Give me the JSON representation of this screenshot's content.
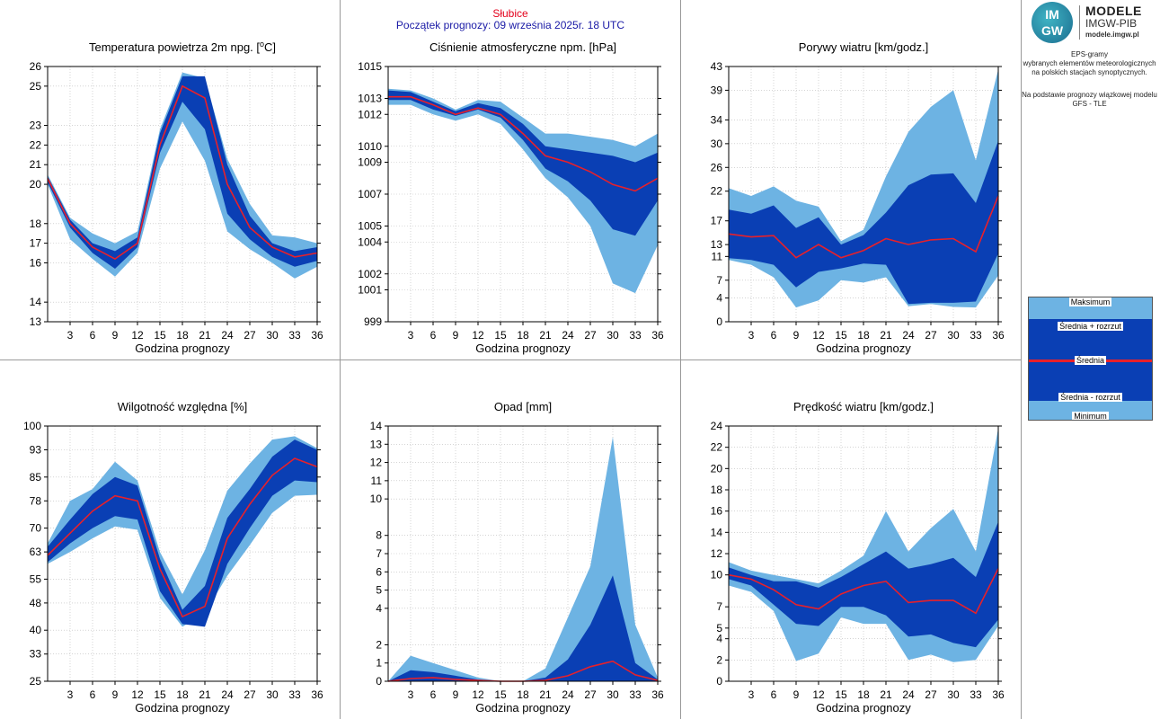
{
  "header": {
    "station": "Słubice",
    "forecast_start": "Początek prognozy: 09 września 2025r. 18 UTC"
  },
  "logo": {
    "title": "MODELE",
    "org": "IMGW-PIB",
    "url": "modele.imgw.pl",
    "mark_top": "IM",
    "mark_bottom": "GW"
  },
  "info": {
    "line1": "EPS-gramy",
    "line2": "wybranych elementów meteorologicznych",
    "line3": "na polskich stacjach  synoptycznych.",
    "line4": "Na podstawie prognozy wiązkowej modelu",
    "line5": "GFS - TLE"
  },
  "legend": {
    "max": "Maksimum",
    "mean_plus": "Średnia + rozrzut",
    "mean": "Średnia",
    "mean_minus": "Średnia - rozrzut",
    "min": "Minimum"
  },
  "colors": {
    "outer": "#6db3e3",
    "inner": "#0a3fb4",
    "mean": "#e8202a",
    "frame": "#000000",
    "grid": "#bbbbbb"
  },
  "chart_data": [
    {
      "type": "area",
      "title": "Temperatura powietrza 2m npg. [°C]",
      "title_main": "Temperatura powietrza 2m npg. [",
      "title_sup": "o",
      "title_end": "C]",
      "xlabel": "Godzina prognozy",
      "x": [
        0,
        3,
        6,
        9,
        12,
        15,
        18,
        21,
        24,
        27,
        30,
        33,
        36
      ],
      "xticks": [
        3,
        6,
        9,
        12,
        15,
        18,
        21,
        24,
        27,
        30,
        33,
        36
      ],
      "ylim": [
        13,
        26
      ],
      "yticks": [
        13,
        14,
        16,
        17,
        18,
        20,
        21,
        22,
        23,
        25,
        26
      ],
      "min": [
        20.0,
        17.2,
        16.2,
        15.3,
        16.5,
        20.8,
        23.2,
        21.2,
        17.6,
        16.7,
        16.0,
        15.2,
        15.8
      ],
      "lower": [
        20.1,
        17.8,
        16.5,
        15.7,
        16.8,
        21.6,
        24.2,
        22.8,
        18.5,
        17.2,
        16.3,
        15.8,
        16.1
      ],
      "mean": [
        20.3,
        18.0,
        16.8,
        16.2,
        17.0,
        22.0,
        25.0,
        24.4,
        20.0,
        17.8,
        16.8,
        16.3,
        16.5
      ],
      "upper": [
        20.4,
        18.2,
        17.0,
        16.6,
        17.3,
        22.6,
        25.5,
        25.5,
        21.0,
        18.4,
        17.0,
        16.6,
        16.8
      ],
      "max": [
        20.5,
        18.3,
        17.5,
        17.0,
        17.6,
        22.8,
        25.7,
        25.4,
        21.3,
        19.0,
        17.4,
        17.3,
        17.0
      ]
    },
    {
      "type": "area",
      "title": "Ciśnienie atmosferyczne npm. [hPa]",
      "xlabel": "Godzina prognozy",
      "x": [
        0,
        3,
        6,
        9,
        12,
        15,
        18,
        21,
        24,
        27,
        30,
        33,
        36
      ],
      "xticks": [
        3,
        6,
        9,
        12,
        15,
        18,
        21,
        24,
        27,
        30,
        33,
        36
      ],
      "ylim": [
        999,
        1015
      ],
      "yticks": [
        999,
        1001,
        1002,
        1004,
        1005,
        1007,
        1009,
        1010,
        1012,
        1013,
        1015
      ],
      "min": [
        1012.6,
        1012.6,
        1012.0,
        1011.6,
        1012.0,
        1011.4,
        1009.8,
        1008.0,
        1006.8,
        1005.0,
        1001.4,
        1000.8,
        1003.8
      ],
      "lower": [
        1012.9,
        1012.9,
        1012.3,
        1011.9,
        1012.3,
        1011.8,
        1010.4,
        1008.6,
        1007.8,
        1006.6,
        1004.8,
        1004.4,
        1006.6
      ],
      "mean": [
        1013.1,
        1013.1,
        1012.6,
        1012.0,
        1012.4,
        1012.0,
        1010.8,
        1009.4,
        1009.0,
        1008.4,
        1007.6,
        1007.2,
        1008.0
      ],
      "upper": [
        1013.5,
        1013.4,
        1012.8,
        1012.2,
        1012.7,
        1012.4,
        1011.4,
        1010.0,
        1009.8,
        1009.6,
        1009.4,
        1009.0,
        1009.6
      ],
      "max": [
        1013.6,
        1013.5,
        1013.0,
        1012.3,
        1012.9,
        1012.8,
        1011.8,
        1010.8,
        1010.8,
        1010.6,
        1010.4,
        1010.0,
        1010.8
      ]
    },
    {
      "type": "area",
      "title": "Porywy wiatru [km/godz.]",
      "xlabel": "Godzina prognozy",
      "x": [
        0,
        3,
        6,
        9,
        12,
        15,
        18,
        21,
        24,
        27,
        30,
        33,
        36
      ],
      "xticks": [
        3,
        6,
        9,
        12,
        15,
        18,
        21,
        24,
        27,
        30,
        33,
        36
      ],
      "ylim": [
        0,
        43
      ],
      "yticks": [
        0,
        4,
        7,
        11,
        13,
        17,
        22,
        26,
        30,
        34,
        39,
        43
      ],
      "min": [
        10.4,
        9.6,
        7.5,
        2.4,
        3.6,
        7.0,
        6.6,
        7.5,
        2.6,
        3.0,
        2.5,
        2.4,
        7.8
      ],
      "lower": [
        10.7,
        10.4,
        9.6,
        5.8,
        8.4,
        9.0,
        9.8,
        9.6,
        3.0,
        3.2,
        3.2,
        3.4,
        11.5
      ],
      "mean": [
        14.8,
        14.3,
        14.5,
        10.8,
        13.0,
        10.8,
        12.0,
        14.0,
        13.0,
        13.8,
        14.0,
        11.8,
        21.2
      ],
      "upper": [
        18.9,
        18.2,
        19.6,
        15.8,
        17.6,
        13.0,
        14.6,
        18.4,
        23.0,
        24.8,
        25.0,
        20.0,
        30.5
      ],
      "max": [
        22.5,
        21.2,
        22.8,
        20.4,
        19.4,
        13.6,
        15.5,
        24.5,
        32.0,
        36.2,
        39.0,
        27.2,
        42.5
      ]
    },
    {
      "type": "area",
      "title": "Wilgotność względna [%]",
      "xlabel": "Godzina prognozy",
      "x": [
        0,
        3,
        6,
        9,
        12,
        15,
        18,
        21,
        24,
        27,
        30,
        33,
        36
      ],
      "xticks": [
        3,
        6,
        9,
        12,
        15,
        18,
        21,
        24,
        27,
        30,
        33,
        36
      ],
      "ylim": [
        25,
        100
      ],
      "yticks": [
        25,
        33,
        40,
        48,
        55,
        63,
        70,
        78,
        85,
        93,
        100
      ],
      "min": [
        59.5,
        63.0,
        67.0,
        70.5,
        69.5,
        49.5,
        41.0,
        45.0,
        56.0,
        65.0,
        74.5,
        79.5,
        79.8
      ],
      "lower": [
        60.0,
        65.5,
        70.0,
        73.5,
        72.5,
        51.5,
        41.8,
        41.0,
        59.5,
        70.0,
        79.5,
        84.0,
        83.5
      ],
      "mean": [
        62.0,
        68.5,
        75.0,
        79.5,
        78.0,
        58.0,
        44.0,
        47.0,
        67.0,
        77.0,
        85.5,
        90.5,
        88.0
      ],
      "upper": [
        64.5,
        72.5,
        80.0,
        85.0,
        82.5,
        61.0,
        46.0,
        53.0,
        73.0,
        81.5,
        91.0,
        96.0,
        93.0
      ],
      "max": [
        65.5,
        78.0,
        81.5,
        89.5,
        84.0,
        63.0,
        50.5,
        63.5,
        81.0,
        89.0,
        96.0,
        97.0,
        93.5
      ]
    },
    {
      "type": "area",
      "title": "Opad [mm]",
      "xlabel": "Godzina prognozy",
      "x": [
        0,
        3,
        6,
        9,
        12,
        15,
        18,
        21,
        24,
        27,
        30,
        33,
        36
      ],
      "xticks": [
        3,
        6,
        9,
        12,
        15,
        18,
        21,
        24,
        27,
        30,
        33,
        36
      ],
      "ylim": [
        0,
        14
      ],
      "yticks": [
        0,
        1,
        2,
        4,
        5,
        6,
        7,
        8,
        10,
        11,
        12,
        13,
        14
      ],
      "min": [
        0.0,
        0.0,
        0.0,
        0.0,
        0.0,
        0.0,
        0.0,
        0.0,
        0.0,
        0.0,
        0.0,
        0.0,
        0.0
      ],
      "lower": [
        0.0,
        0.0,
        0.0,
        0.0,
        0.0,
        0.0,
        0.0,
        0.0,
        0.0,
        0.0,
        0.0,
        0.0,
        0.0
      ],
      "mean": [
        0.0,
        0.15,
        0.2,
        0.1,
        0.05,
        0.0,
        0.0,
        0.05,
        0.3,
        0.8,
        1.1,
        0.35,
        0.05
      ],
      "upper": [
        0.0,
        0.6,
        0.5,
        0.3,
        0.1,
        0.0,
        0.0,
        0.2,
        1.2,
        3.1,
        5.8,
        1.0,
        0.1
      ],
      "max": [
        0.0,
        1.4,
        1.0,
        0.6,
        0.2,
        0.0,
        0.0,
        0.7,
        3.5,
        6.3,
        13.4,
        3.1,
        0.2
      ]
    },
    {
      "type": "area",
      "title": "Prędkość wiatru [km/godz.]",
      "xlabel": "Godzina prognozy",
      "x": [
        0,
        3,
        6,
        9,
        12,
        15,
        18,
        21,
        24,
        27,
        30,
        33,
        36
      ],
      "xticks": [
        3,
        6,
        9,
        12,
        15,
        18,
        21,
        24,
        27,
        30,
        33,
        36
      ],
      "ylim": [
        0,
        24
      ],
      "yticks": [
        0,
        2,
        4,
        5,
        7,
        10,
        12,
        14,
        16,
        18,
        20,
        22,
        24
      ],
      "min": [
        9.0,
        8.4,
        6.6,
        1.9,
        2.6,
        6.0,
        5.4,
        5.4,
        2.0,
        2.5,
        1.8,
        2.0,
        5.2
      ],
      "lower": [
        9.6,
        9.0,
        7.2,
        5.4,
        5.2,
        7.0,
        7.0,
        6.2,
        4.2,
        4.4,
        3.6,
        3.2,
        5.8
      ],
      "mean": [
        10.0,
        9.6,
        8.6,
        7.2,
        6.8,
        8.2,
        9.0,
        9.4,
        7.4,
        7.6,
        7.6,
        6.4,
        10.6
      ],
      "upper": [
        10.7,
        10.0,
        9.4,
        9.4,
        8.8,
        9.8,
        11.0,
        12.2,
        10.6,
        11.0,
        11.6,
        9.8,
        15.0
      ],
      "max": [
        11.2,
        10.4,
        10.0,
        9.6,
        9.2,
        10.4,
        11.8,
        16.0,
        12.2,
        14.4,
        16.2,
        12.2,
        23.8
      ]
    }
  ]
}
